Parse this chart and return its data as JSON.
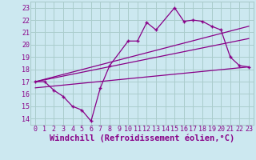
{
  "background_color": "#cce8f0",
  "grid_color": "#aacccc",
  "line_color": "#880088",
  "xlabel": "Windchill (Refroidissement éolien,°C)",
  "xlim": [
    -0.5,
    23.5
  ],
  "ylim": [
    13.5,
    23.5
  ],
  "yticks": [
    14,
    15,
    16,
    17,
    18,
    19,
    20,
    21,
    22,
    23
  ],
  "xticks": [
    0,
    1,
    2,
    3,
    4,
    5,
    6,
    7,
    8,
    9,
    10,
    11,
    12,
    13,
    14,
    15,
    16,
    17,
    18,
    19,
    20,
    21,
    22,
    23
  ],
  "series1_x": [
    0,
    1,
    2,
    3,
    4,
    5,
    6,
    7,
    8,
    10,
    11,
    12,
    13,
    15,
    16,
    17,
    18,
    19,
    20,
    21,
    22,
    23
  ],
  "series1_y": [
    17.0,
    17.0,
    16.3,
    15.8,
    15.0,
    14.7,
    13.8,
    16.5,
    18.3,
    20.3,
    20.3,
    21.8,
    21.2,
    23.0,
    21.9,
    22.0,
    21.9,
    21.5,
    21.2,
    19.0,
    18.3,
    18.2
  ],
  "series2_x": [
    0,
    23
  ],
  "series2_y": [
    17.0,
    21.5
  ],
  "series3_x": [
    0,
    23
  ],
  "series3_y": [
    17.0,
    20.5
  ],
  "series4_x": [
    0,
    23
  ],
  "series4_y": [
    16.5,
    18.2
  ],
  "tick_fontsize": 6,
  "xlabel_fontsize": 7.5
}
